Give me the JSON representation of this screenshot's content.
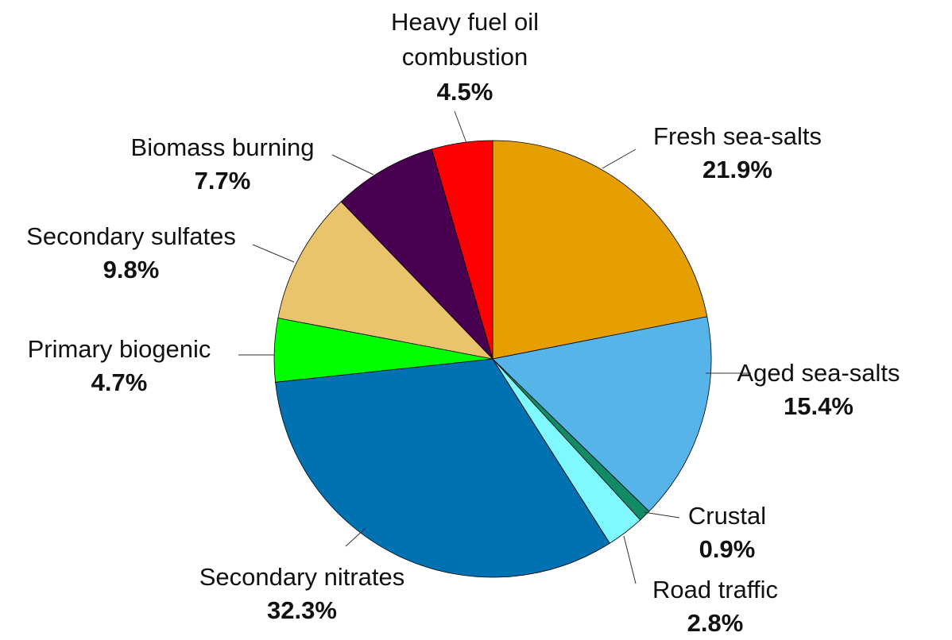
{
  "chart_data": {
    "type": "pie",
    "categories": [
      "Fresh sea-salts",
      "Aged sea-salts",
      "Crustal",
      "Road traffic",
      "Secondary nitrates",
      "Primary biogenic",
      "Secondary sulfates",
      "Biomass burning",
      "Heavy fuel oil combustion"
    ],
    "values": [
      21.9,
      15.4,
      0.9,
      2.8,
      32.3,
      4.7,
      9.8,
      7.7,
      4.5
    ],
    "value_labels": [
      "21.9%",
      "15.4%",
      "0.9%",
      "2.8%",
      "32.3%",
      "4.7%",
      "9.8%",
      "7.7%",
      "4.5%"
    ],
    "colors": [
      "#e69f00",
      "#56b4e9",
      "#138a66",
      "#80f8ff",
      "#0072b2",
      "#00ff00",
      "#e9c46c",
      "#4a0050",
      "#ff0000"
    ]
  }
}
